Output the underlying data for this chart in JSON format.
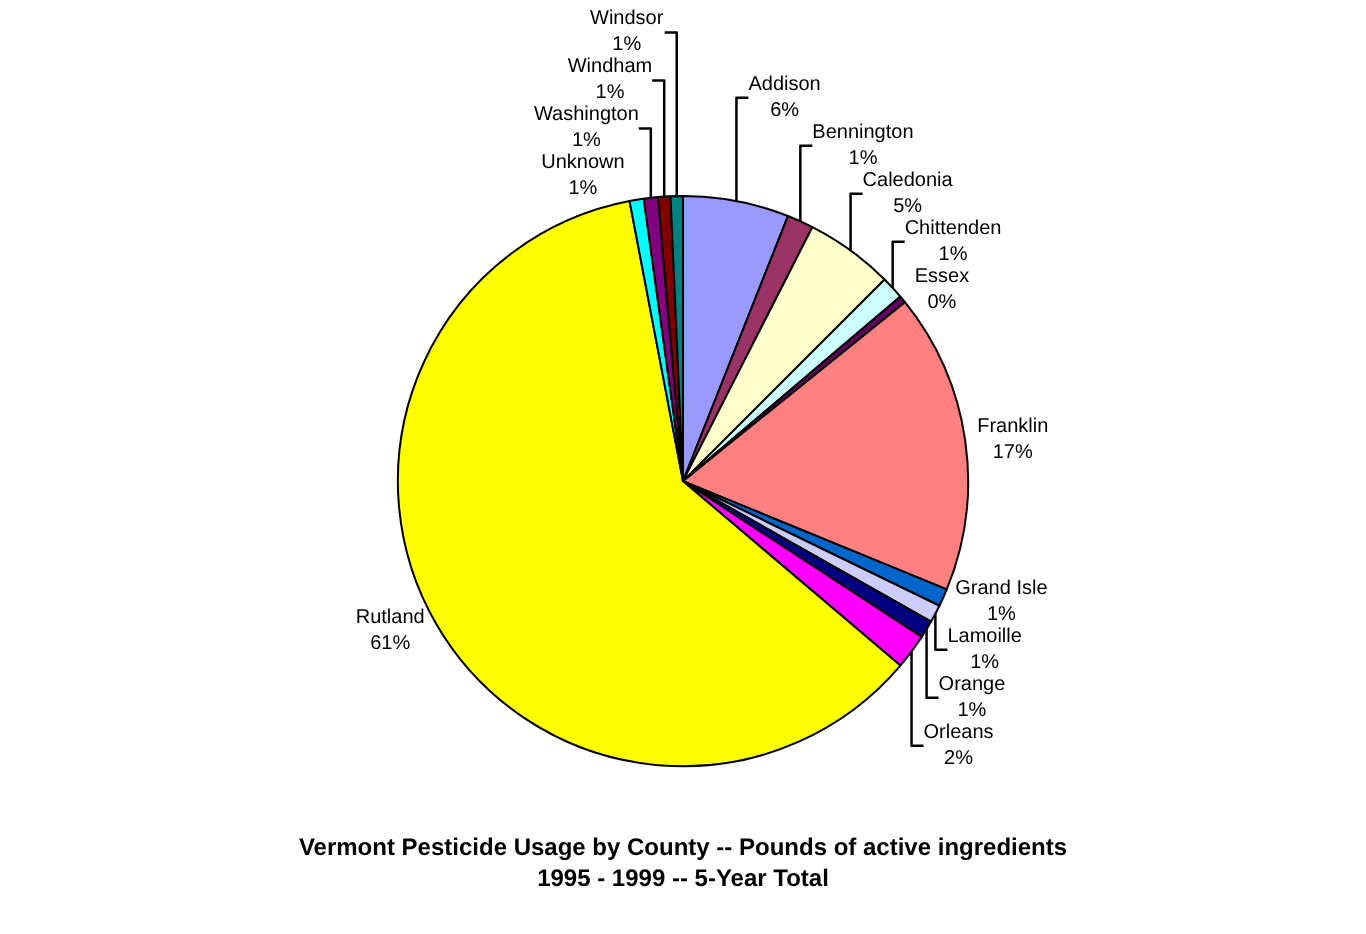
{
  "chart_data": {
    "type": "pie",
    "title": "Vermont Pesticide Usage by County -- Pounds of active ingredients\n1995 - 1999 -- 5-Year Total",
    "categories": [
      "Addison",
      "Bennington",
      "Caledonia",
      "Chittenden",
      "Essex",
      "Franklin",
      "Grand Isle",
      "Lamoille",
      "Orange",
      "Orleans",
      "Rutland",
      "Unknown",
      "Washington",
      "Windham",
      "Windsor"
    ],
    "values": [
      6,
      1.5,
      5,
      1.3,
      0.4,
      17,
      1,
      1,
      1,
      2,
      60.8,
      0.8,
      0.8,
      0.7,
      0.7
    ],
    "value_labels": [
      "6%",
      "1%",
      "5%",
      "1%",
      "0%",
      "17%",
      "1%",
      "1%",
      "1%",
      "2%",
      "61%",
      "1%",
      "1%",
      "1%",
      "1%"
    ],
    "colors": [
      "#9999ff",
      "#993366",
      "#ffffcc",
      "#ccffff",
      "#660066",
      "#ff8080",
      "#0066cc",
      "#ccccff",
      "#000080",
      "#ff00ff",
      "#ffff00",
      "#00ffff",
      "#800080",
      "#800000",
      "#008080"
    ],
    "legend": false
  }
}
